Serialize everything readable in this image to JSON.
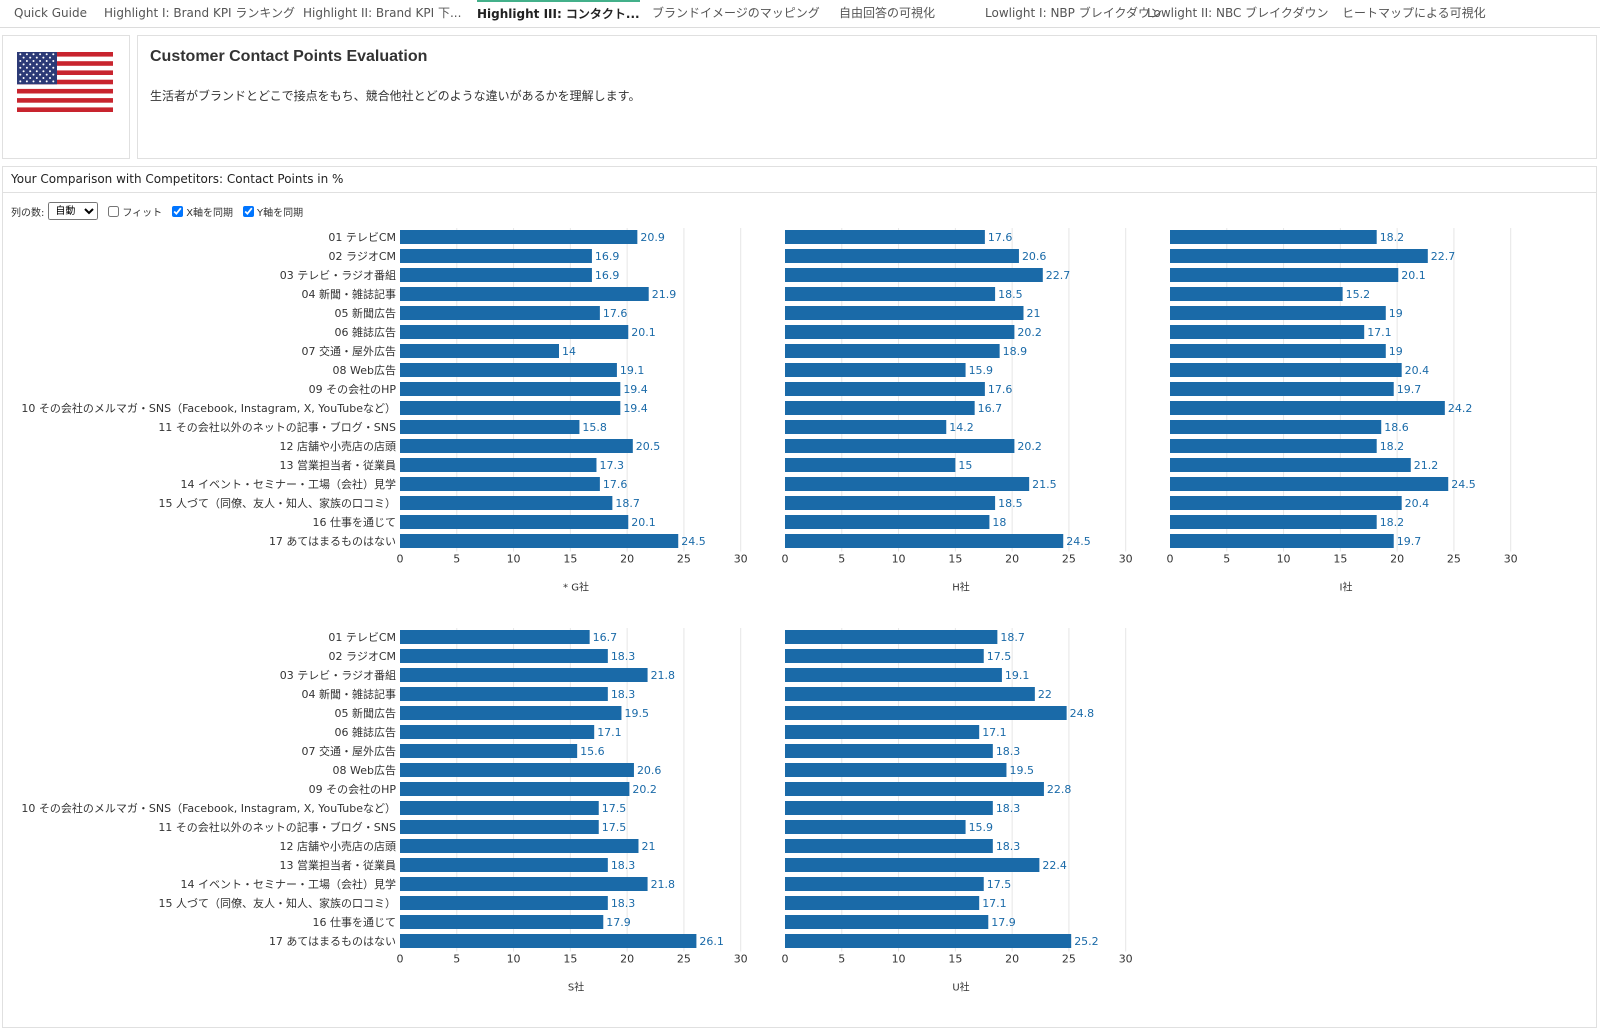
{
  "tabs": [
    {
      "label": "Quick Guide",
      "active": false
    },
    {
      "label": "Highlight I: Brand KPI ランキング",
      "active": false
    },
    {
      "label": "Highlight II: Brand KPI 下...",
      "active": false
    },
    {
      "label": "Highlight III: コンタクト...",
      "active": true
    },
    {
      "label": "ブランドイメージのマッピング",
      "active": false
    },
    {
      "label": "自由回答の可視化",
      "active": false
    },
    {
      "label": "Lowlight I: NBP ブレイクダウン",
      "active": false
    },
    {
      "label": "Lowlight II: NBC ブレイクダウン",
      "active": false
    },
    {
      "label": "ヒートマップによる可視化",
      "active": false
    }
  ],
  "header": {
    "flag_icon": "us-flag-icon",
    "title": "Customer Contact Points Evaluation",
    "description": "生活者がブランドとどこで接点をもち、競合他社とどのような違いがあるかを理解します。"
  },
  "panel": {
    "title": "Your Comparison with Competitors: Contact Points in %",
    "columns_label": "列の数:",
    "columns_value": "自動",
    "fit_label": "フィット",
    "fit_checked": false,
    "sync_x_label": "X軸を同期",
    "sync_x_checked": true,
    "sync_y_label": "Y軸を同期",
    "sync_y_checked": true
  },
  "chart_data": {
    "type": "bar",
    "orientation": "horizontal",
    "bar_color": "#1a6aa8",
    "label_color": "#1a6aa8",
    "xlim": [
      0,
      30
    ],
    "xticks": [
      0,
      5,
      10,
      15,
      20,
      25,
      30
    ],
    "categories": [
      "01 テレビCM",
      "02 ラジオCM",
      "03 テレビ・ラジオ番組",
      "04 新聞・雑誌記事",
      "05 新聞広告",
      "06 雑誌広告",
      "07 交通・屋外広告",
      "08 Web広告",
      "09 その会社のHP",
      "10 その会社のメルマガ・SNS（Facebook, Instagram, X, YouTubeなど）",
      "11 その会社以外のネットの記事・ブログ・SNS",
      "12 店舗や小売店の店頭",
      "13 営業担当者・従業員",
      "14 イベント・セミナー・工場（会社）見学",
      "15 人づて（同僚、友人・知人、家族の口コミ）",
      "16 仕事を通じて",
      "17 あてはまるものはない"
    ],
    "series": [
      {
        "name": "* G社",
        "values": [
          20.9,
          16.9,
          16.9,
          21.9,
          17.6,
          20.1,
          14,
          19.1,
          19.4,
          19.4,
          15.8,
          20.5,
          17.3,
          17.6,
          18.7,
          20.1,
          24.5
        ]
      },
      {
        "name": "H社",
        "values": [
          17.6,
          20.6,
          22.7,
          18.5,
          21,
          20.2,
          18.9,
          15.9,
          17.6,
          16.7,
          14.2,
          20.2,
          15,
          21.5,
          18.5,
          18,
          24.5
        ]
      },
      {
        "name": "I社",
        "values": [
          18.2,
          22.7,
          20.1,
          15.2,
          19,
          17.1,
          19,
          20.4,
          19.7,
          24.2,
          18.6,
          18.2,
          21.2,
          24.5,
          20.4,
          18.2,
          19.7
        ]
      },
      {
        "name": "S社",
        "values": [
          16.7,
          18.3,
          21.8,
          18.3,
          19.5,
          17.1,
          15.6,
          20.6,
          20.2,
          17.5,
          17.5,
          21,
          18.3,
          21.8,
          18.3,
          17.9,
          26.1
        ]
      },
      {
        "name": "U社",
        "values": [
          18.7,
          17.5,
          19.1,
          22,
          24.8,
          17.1,
          18.3,
          19.5,
          22.8,
          18.3,
          15.9,
          18.3,
          22.4,
          17.5,
          17.1,
          17.9,
          25.2
        ]
      }
    ]
  }
}
